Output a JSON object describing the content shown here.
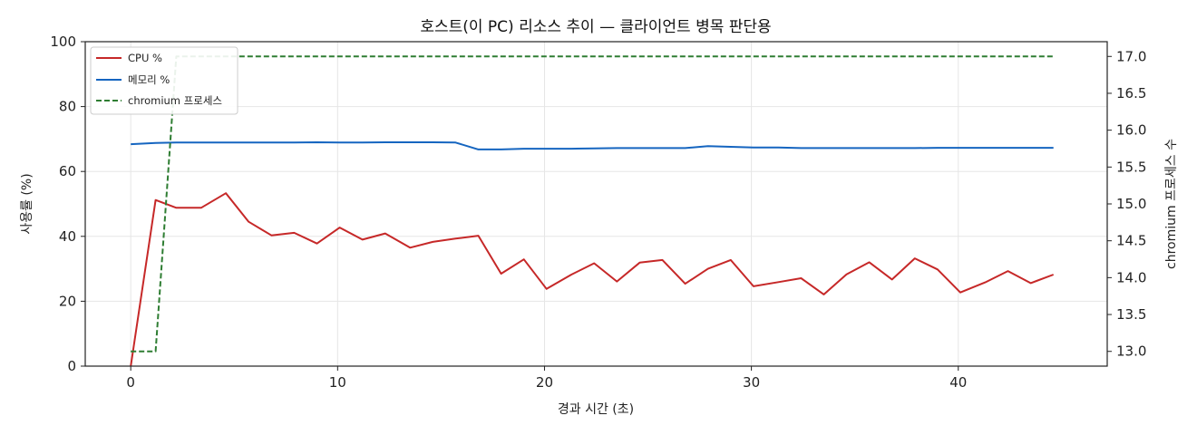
{
  "chart_data": {
    "type": "line",
    "title": "호스트(이 PC) 리소스 추이 — 클라이언트 병목 판단용",
    "xlabel": "경과 시간 (초)",
    "ylabel": "사용률 (%)",
    "y2label": "chromium 프로세스 수",
    "xlim": [
      -2.2,
      47.2
    ],
    "ylim": [
      0,
      100
    ],
    "y2lim": [
      12.8,
      17.2
    ],
    "xticks": [
      "0",
      "10",
      "20",
      "30",
      "40"
    ],
    "xtick_values": [
      0,
      10,
      20,
      30,
      40
    ],
    "yticks": [
      "0",
      "20",
      "40",
      "60",
      "80",
      "100"
    ],
    "ytick_values": [
      0,
      20,
      40,
      60,
      80,
      100
    ],
    "y2ticks": [
      "13.0",
      "13.5",
      "14.0",
      "14.5",
      "15.0",
      "15.5",
      "16.0",
      "16.5",
      "17.0"
    ],
    "y2tick_values": [
      13.0,
      13.5,
      14.0,
      14.5,
      15.0,
      15.5,
      16.0,
      16.5,
      17.0
    ],
    "grid": true,
    "legend_position": "top-left",
    "x": [
      0,
      1.2,
      2.2,
      3.4,
      4.6,
      5.7,
      6.8,
      7.9,
      9.0,
      10.1,
      11.2,
      12.3,
      13.5,
      14.6,
      15.7,
      16.8,
      17.9,
      19.0,
      20.1,
      21.3,
      22.4,
      23.5,
      24.6,
      25.7,
      26.8,
      27.9,
      29.0,
      30.1,
      31.3,
      32.4,
      33.5,
      34.6,
      35.7,
      36.8,
      37.9,
      39.0,
      40.1,
      41.3,
      42.4,
      43.5,
      44.6
    ],
    "series": [
      {
        "name": "CPU %",
        "axis": "left",
        "color": "#c62828",
        "style": "solid",
        "values": [
          0,
          51.2,
          48.8,
          48.8,
          53.3,
          44.5,
          40.3,
          41.1,
          37.8,
          42.7,
          39.0,
          40.9,
          36.5,
          38.3,
          39.3,
          40.2,
          28.5,
          32.9,
          23.8,
          28.2,
          31.7,
          26.1,
          31.9,
          32.7,
          25.4,
          30.0,
          32.7,
          24.6,
          25.9,
          27.1,
          22.1,
          28.3,
          32.0,
          26.7,
          33.2,
          29.8,
          22.7,
          25.8,
          29.3,
          25.6,
          28.2
        ]
      },
      {
        "name": "메모리 %",
        "axis": "left",
        "color": "#1565c0",
        "style": "solid",
        "values": [
          68.4,
          68.8,
          68.9,
          68.9,
          68.9,
          68.9,
          68.9,
          68.9,
          69.0,
          68.9,
          68.9,
          69.0,
          69.0,
          69.0,
          68.9,
          66.8,
          66.8,
          67.0,
          67.0,
          67.0,
          67.1,
          67.2,
          67.2,
          67.2,
          67.2,
          67.8,
          67.6,
          67.4,
          67.4,
          67.2,
          67.2,
          67.2,
          67.2,
          67.2,
          67.2,
          67.3,
          67.3,
          67.3,
          67.3,
          67.3,
          67.3
        ]
      },
      {
        "name": "chromium 프로세스",
        "axis": "right",
        "color": "#2e7d32",
        "style": "dashed",
        "values": [
          13,
          13,
          17,
          17,
          17,
          17,
          17,
          17,
          17,
          17,
          17,
          17,
          17,
          17,
          17,
          17,
          17,
          17,
          17,
          17,
          17,
          17,
          17,
          17,
          17,
          17,
          17,
          17,
          17,
          17,
          17,
          17,
          17,
          17,
          17,
          17,
          17,
          17,
          17,
          17,
          17
        ]
      }
    ]
  }
}
